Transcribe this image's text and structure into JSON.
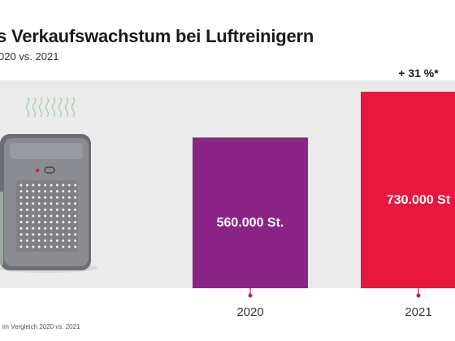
{
  "header": {
    "title": "s Verkaufswachstum bei Luftreinigern",
    "subtitle": "020 vs. 2021",
    "footnote": "t im Vergleich 2020 vs. 2021"
  },
  "chart_data": {
    "type": "bar",
    "categories": [
      "2020",
      "2021"
    ],
    "values": [
      560000,
      730000
    ],
    "value_labels": [
      "560.000 St.",
      "730.000 St"
    ],
    "annotation": "+ 31 %*",
    "ylim": [
      0,
      800000
    ],
    "grid": false,
    "colors": {
      "2020": "#8a2587",
      "2021": "#e8173f",
      "panel": "#ebebeb",
      "tick_dot": "#c2185b"
    }
  },
  "illustration": {
    "icon": "air-purifier-icon",
    "airflow_icon": "air-waves-icon"
  }
}
